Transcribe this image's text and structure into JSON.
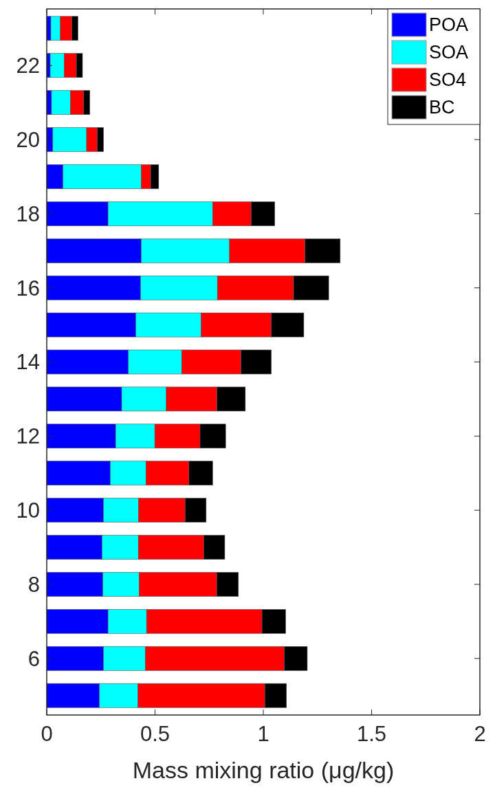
{
  "chart_data": {
    "type": "bar",
    "orientation": "horizontal",
    "stacked": true,
    "xlabel": "Mass mixing ratio (μg/kg)",
    "categories": [
      null,
      "22",
      null,
      "20",
      null,
      "18",
      null,
      "16",
      null,
      "14",
      null,
      "12",
      null,
      "10",
      null,
      "8",
      null,
      "6",
      null
    ],
    "series": [
      {
        "name": "POA",
        "color": "#0000ff",
        "values": [
          0.019,
          0.016,
          0.022,
          0.028,
          0.075,
          0.283,
          0.436,
          0.433,
          0.411,
          0.377,
          0.346,
          0.318,
          0.293,
          0.262,
          0.255,
          0.259,
          0.283,
          0.262,
          0.243
        ]
      },
      {
        "name": "SOA",
        "color": "#00ffff",
        "values": [
          0.044,
          0.065,
          0.087,
          0.156,
          0.361,
          0.483,
          0.408,
          0.355,
          0.302,
          0.246,
          0.206,
          0.181,
          0.165,
          0.162,
          0.168,
          0.168,
          0.178,
          0.193,
          0.178
        ]
      },
      {
        "name": "SO4",
        "color": "#ff0000",
        "values": [
          0.053,
          0.056,
          0.062,
          0.05,
          0.044,
          0.178,
          0.349,
          0.352,
          0.324,
          0.274,
          0.234,
          0.209,
          0.199,
          0.215,
          0.302,
          0.358,
          0.533,
          0.642,
          0.586
        ]
      },
      {
        "name": "BC",
        "color": "#000000",
        "values": [
          0.028,
          0.028,
          0.028,
          0.028,
          0.037,
          0.109,
          0.162,
          0.162,
          0.15,
          0.14,
          0.131,
          0.118,
          0.109,
          0.097,
          0.097,
          0.1,
          0.109,
          0.106,
          0.1
        ]
      }
    ],
    "xlim": [
      0,
      2
    ],
    "xticks": [
      0,
      0.5,
      1,
      1.5,
      2
    ],
    "legend": "top right",
    "grid": false
  }
}
